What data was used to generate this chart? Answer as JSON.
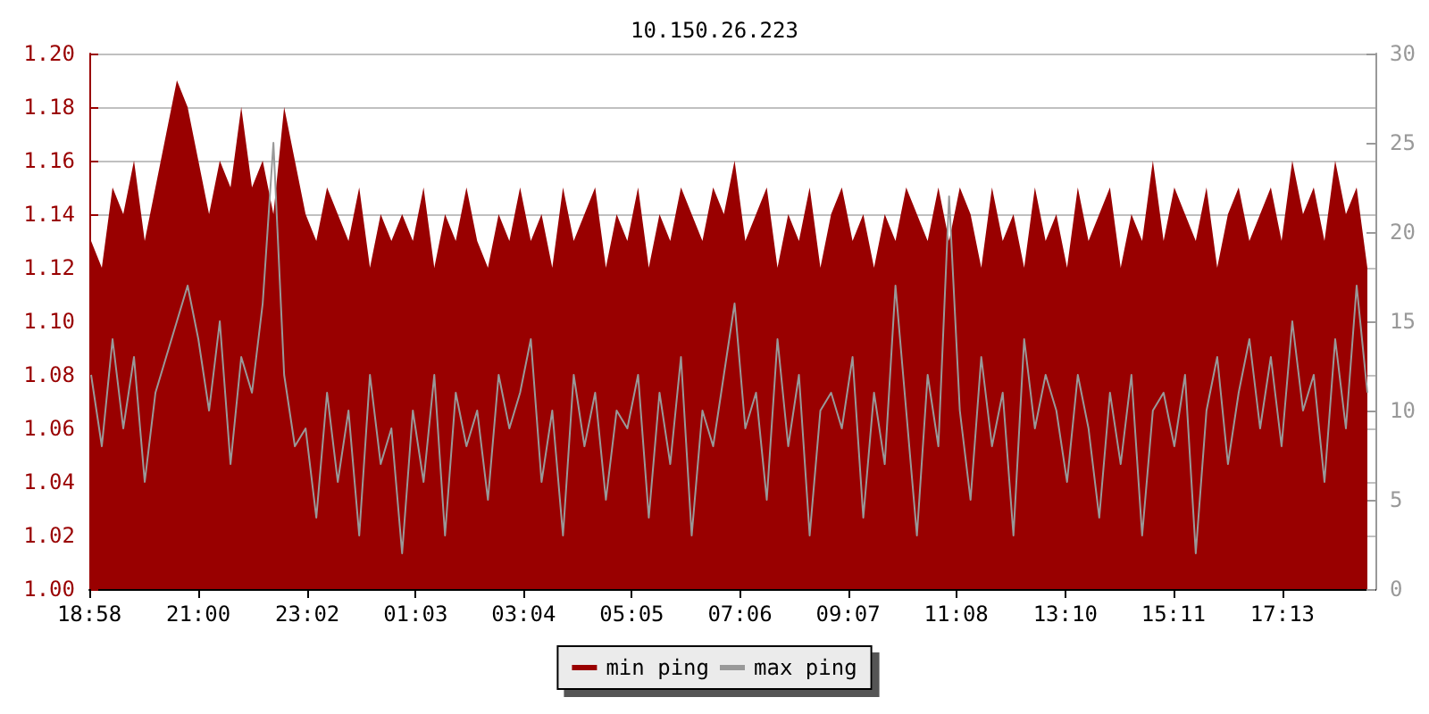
{
  "chart_data": {
    "type": "area",
    "title": "10.150.26.223",
    "x": [
      "2000-01-01T19:00",
      "2000-01-01T19:12",
      "2000-01-01T19:24",
      "2000-01-01T19:36",
      "2000-01-01T19:48",
      "2000-01-01T20:00",
      "2000-01-01T20:12",
      "2000-01-01T20:24",
      "2000-01-01T20:36",
      "2000-01-01T20:48",
      "2000-01-01T21:00",
      "2000-01-01T21:12",
      "2000-01-01T21:24",
      "2000-01-01T21:36",
      "2000-01-01T21:48",
      "2000-01-01T22:00",
      "2000-01-01T22:12",
      "2000-01-01T22:24",
      "2000-01-01T22:36",
      "2000-01-01T22:48",
      "2000-01-01T23:00",
      "2000-01-01T23:12",
      "2000-01-01T23:24",
      "2000-01-01T23:36",
      "2000-01-01T23:48",
      "2000-01-02T00:00",
      "2000-01-02T00:12",
      "2000-01-02T00:24",
      "2000-01-02T00:36",
      "2000-01-02T00:48",
      "2000-01-02T01:00",
      "2000-01-02T01:12",
      "2000-01-02T01:24",
      "2000-01-02T01:36",
      "2000-01-02T01:48",
      "2000-01-02T02:00",
      "2000-01-02T02:12",
      "2000-01-02T02:24",
      "2000-01-02T02:36",
      "2000-01-02T02:48",
      "2000-01-02T03:00",
      "2000-01-02T03:12",
      "2000-01-02T03:24",
      "2000-01-02T03:36",
      "2000-01-02T03:48",
      "2000-01-02T04:00",
      "2000-01-02T04:12",
      "2000-01-02T04:24",
      "2000-01-02T04:36",
      "2000-01-02T04:48",
      "2000-01-02T05:00",
      "2000-01-02T05:12",
      "2000-01-02T05:24",
      "2000-01-02T05:36",
      "2000-01-02T05:48",
      "2000-01-02T06:00",
      "2000-01-02T06:12",
      "2000-01-02T06:24",
      "2000-01-02T06:36",
      "2000-01-02T06:48",
      "2000-01-02T07:00",
      "2000-01-02T07:12",
      "2000-01-02T07:24",
      "2000-01-02T07:36",
      "2000-01-02T07:48",
      "2000-01-02T08:00",
      "2000-01-02T08:12",
      "2000-01-02T08:24",
      "2000-01-02T08:36",
      "2000-01-02T08:48",
      "2000-01-02T09:00",
      "2000-01-02T09:12",
      "2000-01-02T09:24",
      "2000-01-02T09:36",
      "2000-01-02T09:48",
      "2000-01-02T10:00",
      "2000-01-02T10:12",
      "2000-01-02T10:24",
      "2000-01-02T10:36",
      "2000-01-02T10:48",
      "2000-01-02T11:00",
      "2000-01-02T11:12",
      "2000-01-02T11:24",
      "2000-01-02T11:36",
      "2000-01-02T11:48",
      "2000-01-02T12:00",
      "2000-01-02T12:12",
      "2000-01-02T12:24",
      "2000-01-02T12:36",
      "2000-01-02T12:48",
      "2000-01-02T13:00",
      "2000-01-02T13:12",
      "2000-01-02T13:24",
      "2000-01-02T13:36",
      "2000-01-02T13:48",
      "2000-01-02T14:00",
      "2000-01-02T14:12",
      "2000-01-02T14:24",
      "2000-01-02T14:36",
      "2000-01-02T14:48",
      "2000-01-02T15:00",
      "2000-01-02T15:12",
      "2000-01-02T15:24",
      "2000-01-02T15:36",
      "2000-01-02T15:48",
      "2000-01-02T16:00",
      "2000-01-02T16:12",
      "2000-01-02T16:24",
      "2000-01-02T16:36",
      "2000-01-02T16:48",
      "2000-01-02T17:00",
      "2000-01-02T17:12",
      "2000-01-02T17:24",
      "2000-01-02T17:36",
      "2000-01-02T17:48",
      "2000-01-02T18:00",
      "2000-01-02T18:12",
      "2000-01-02T18:24",
      "2000-01-02T18:36",
      "2000-01-02T18:48"
    ],
    "series": [
      {
        "name": "min ping",
        "color": "#990000",
        "values": [
          1.13,
          1.12,
          1.15,
          1.14,
          1.16,
          1.13,
          1.15,
          1.17,
          1.19,
          1.18,
          1.16,
          1.14,
          1.16,
          1.15,
          1.18,
          1.15,
          1.16,
          1.14,
          1.18,
          1.16,
          1.14,
          1.13,
          1.15,
          1.14,
          1.13,
          1.15,
          1.12,
          1.14,
          1.13,
          1.14,
          1.13,
          1.15,
          1.12,
          1.14,
          1.13,
          1.15,
          1.13,
          1.12,
          1.14,
          1.13,
          1.15,
          1.13,
          1.14,
          1.12,
          1.15,
          1.13,
          1.14,
          1.15,
          1.12,
          1.14,
          1.13,
          1.15,
          1.12,
          1.14,
          1.13,
          1.15,
          1.14,
          1.13,
          1.15,
          1.14,
          1.16,
          1.13,
          1.14,
          1.15,
          1.12,
          1.14,
          1.13,
          1.15,
          1.12,
          1.14,
          1.15,
          1.13,
          1.14,
          1.12,
          1.14,
          1.13,
          1.15,
          1.14,
          1.13,
          1.15,
          1.13,
          1.15,
          1.14,
          1.12,
          1.15,
          1.13,
          1.14,
          1.12,
          1.15,
          1.13,
          1.14,
          1.12,
          1.15,
          1.13,
          1.14,
          1.15,
          1.12,
          1.14,
          1.13,
          1.16,
          1.13,
          1.15,
          1.14,
          1.13,
          1.15,
          1.12,
          1.14,
          1.15,
          1.13,
          1.14,
          1.15,
          1.13,
          1.16,
          1.14,
          1.15,
          1.13,
          1.16,
          1.14,
          1.15,
          1.12
        ]
      },
      {
        "name": "max ping",
        "type": "line",
        "axis": "y2",
        "color": "#999999",
        "values": [
          12,
          8,
          14,
          9,
          13,
          6,
          11,
          13,
          15,
          17,
          14,
          10,
          15,
          7,
          13,
          11,
          16,
          25,
          12,
          8,
          9,
          4,
          11,
          6,
          10,
          3,
          12,
          7,
          9,
          2,
          10,
          6,
          12,
          3,
          11,
          8,
          10,
          5,
          12,
          9,
          11,
          14,
          6,
          10,
          3,
          12,
          8,
          11,
          5,
          10,
          9,
          12,
          4,
          11,
          7,
          13,
          3,
          10,
          8,
          12,
          16,
          9,
          11,
          5,
          14,
          8,
          12,
          3,
          10,
          11,
          9,
          13,
          4,
          11,
          7,
          17,
          10,
          3,
          12,
          8,
          22,
          10,
          5,
          13,
          8,
          11,
          3,
          14,
          9,
          12,
          10,
          6,
          12,
          9,
          4,
          11,
          7,
          12,
          3,
          10,
          11,
          8,
          12,
          2,
          10,
          13,
          7,
          11,
          14,
          9,
          13,
          8,
          15,
          10,
          12,
          6,
          14,
          9,
          17,
          11
        ]
      }
    ],
    "xlim": [
      "2000-01-01T18:58",
      "2000-01-02T18:57"
    ],
    "xticks": [
      {
        "value": "2000-01-01T18:58",
        "label": "18:58"
      },
      {
        "value": "2000-01-01T21:00",
        "label": "21:00"
      },
      {
        "value": "2000-01-01T23:02",
        "label": "23:02"
      },
      {
        "value": "2000-01-02T01:03",
        "label": "01:03"
      },
      {
        "value": "2000-01-02T03:04",
        "label": "03:04"
      },
      {
        "value": "2000-01-02T05:05",
        "label": "05:05"
      },
      {
        "value": "2000-01-02T07:06",
        "label": "07:06"
      },
      {
        "value": "2000-01-02T09:07",
        "label": "09:07"
      },
      {
        "value": "2000-01-02T11:08",
        "label": "11:08"
      },
      {
        "value": "2000-01-02T13:10",
        "label": "13:10"
      },
      {
        "value": "2000-01-02T15:11",
        "label": "15:11"
      },
      {
        "value": "2000-01-02T17:13",
        "label": "17:13"
      }
    ],
    "ylim": [
      1.0,
      1.2
    ],
    "yticks": [
      {
        "value": 1.0,
        "label": "1.00"
      },
      {
        "value": 1.02,
        "label": "1.02"
      },
      {
        "value": 1.04,
        "label": "1.04"
      },
      {
        "value": 1.06,
        "label": "1.06"
      },
      {
        "value": 1.08,
        "label": "1.08"
      },
      {
        "value": 1.1,
        "label": "1.10"
      },
      {
        "value": 1.12,
        "label": "1.12"
      },
      {
        "value": 1.14,
        "label": "1.14"
      },
      {
        "value": 1.16,
        "label": "1.16"
      },
      {
        "value": 1.18,
        "label": "1.18"
      },
      {
        "value": 1.2,
        "label": "1.20"
      }
    ],
    "y2lim": [
      0,
      30
    ],
    "y2ticks": [
      0,
      5,
      10,
      15,
      20,
      25,
      30
    ],
    "grid": "y",
    "legend": "bottom",
    "marker": "none",
    "line_style": "solid"
  }
}
